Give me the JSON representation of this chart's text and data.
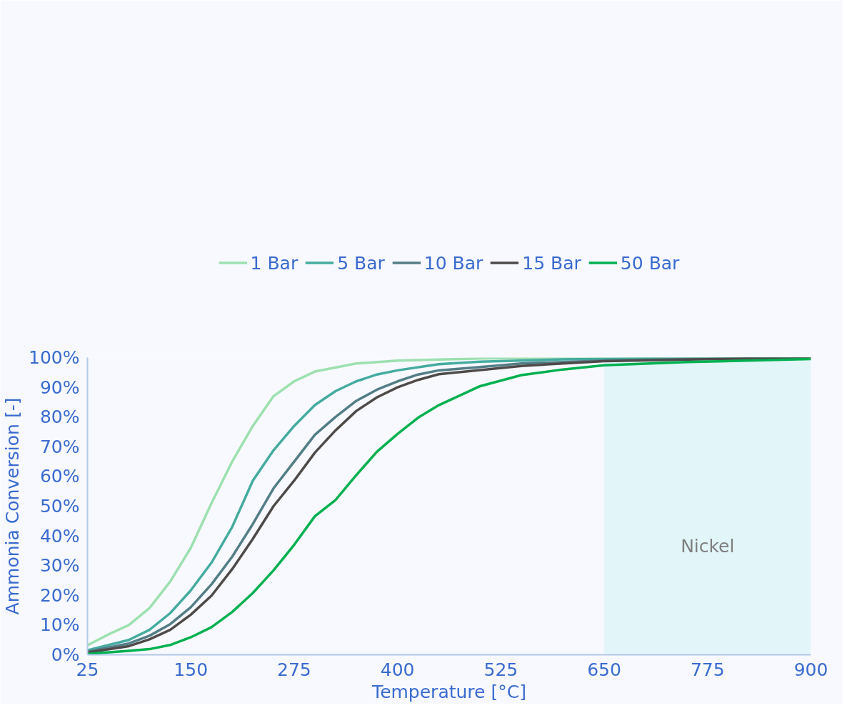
{
  "chart_data": {
    "type": "line",
    "xlabel": "Temperature [°C]",
    "ylabel": "Ammonia Conversion [-]",
    "xlim": [
      25,
      900
    ],
    "ylim": [
      0,
      100
    ],
    "xticks": [
      25,
      150,
      275,
      400,
      525,
      650,
      775,
      900
    ],
    "yticks": [
      {
        "value": 0,
        "label": "0%"
      },
      {
        "value": 10,
        "label": "10%"
      },
      {
        "value": 20,
        "label": "20%"
      },
      {
        "value": 30,
        "label": "30%"
      },
      {
        "value": 40,
        "label": "40%"
      },
      {
        "value": 50,
        "label": "50%"
      },
      {
        "value": 60,
        "label": "60%"
      },
      {
        "value": 70,
        "label": "70%"
      },
      {
        "value": 80,
        "label": "80%"
      },
      {
        "value": 90,
        "label": "90%"
      },
      {
        "value": 100,
        "label": "100%"
      }
    ],
    "grid": false,
    "legend": "top",
    "marker": "none",
    "line_style": "solid",
    "bands": [
      {
        "axis": "x",
        "from": 650,
        "to": 900,
        "label": "Nickel",
        "color": "#e2f5f9"
      }
    ],
    "series": [
      {
        "name": "1 Bar",
        "color": "#9de0b0",
        "x": [
          25,
          50,
          75,
          100,
          125,
          150,
          175,
          200,
          225,
          250,
          275,
          300,
          350,
          400,
          500,
          600,
          900
        ],
        "values": [
          3.2,
          6.8,
          10,
          15.7,
          24.6,
          36,
          51,
          65,
          77,
          87,
          92,
          95.3,
          98,
          99,
          99.7,
          99.9,
          100
        ]
      },
      {
        "name": "5 Bar",
        "color": "#45aba0",
        "x": [
          25,
          75,
          100,
          125,
          150,
          175,
          200,
          225,
          250,
          275,
          300,
          325,
          350,
          375,
          400,
          450,
          500,
          600,
          700,
          900
        ],
        "values": [
          1.5,
          5,
          8.4,
          14,
          21.7,
          31,
          43,
          58.6,
          68.8,
          77,
          84,
          88.7,
          92,
          94.3,
          95.7,
          97.8,
          98.6,
          99.4,
          99.7,
          100
        ]
      },
      {
        "name": "10 Bar",
        "color": "#537d87",
        "x": [
          25,
          75,
          100,
          125,
          150,
          175,
          200,
          225,
          250,
          275,
          300,
          325,
          350,
          375,
          400,
          425,
          450,
          500,
          550,
          650,
          750,
          900
        ],
        "values": [
          1,
          3.8,
          6.4,
          10.3,
          16,
          23.7,
          33,
          44,
          56,
          65,
          74,
          80,
          85.4,
          89.2,
          92,
          94.3,
          95.7,
          96.8,
          98,
          99,
          99.5,
          100
        ]
      },
      {
        "name": "15 Bar",
        "color": "#4f4a4a",
        "x": [
          25,
          75,
          100,
          125,
          150,
          175,
          200,
          225,
          250,
          275,
          300,
          325,
          350,
          375,
          400,
          425,
          450,
          500,
          550,
          650,
          800,
          900
        ],
        "values": [
          0.8,
          2.9,
          5.2,
          8.4,
          13.5,
          19.9,
          28.8,
          39,
          50,
          58.6,
          68,
          75.5,
          82,
          86.6,
          90,
          92.5,
          94.4,
          95.8,
          97.2,
          98.8,
          99.6,
          100
        ]
      },
      {
        "name": "50 Bar",
        "color": "#00b050",
        "x": [
          25,
          75,
          100,
          125,
          150,
          175,
          200,
          225,
          250,
          275,
          300,
          325,
          350,
          375,
          400,
          425,
          450,
          500,
          550,
          600,
          650,
          750,
          900
        ],
        "values": [
          0.3,
          1.3,
          1.9,
          3.3,
          5.9,
          9.3,
          14.4,
          20.8,
          28.4,
          37,
          46.6,
          52.1,
          60.4,
          68.3,
          74.3,
          79.8,
          84,
          90.4,
          94.1,
          96,
          97.4,
          98.5,
          99.5
        ]
      }
    ]
  }
}
